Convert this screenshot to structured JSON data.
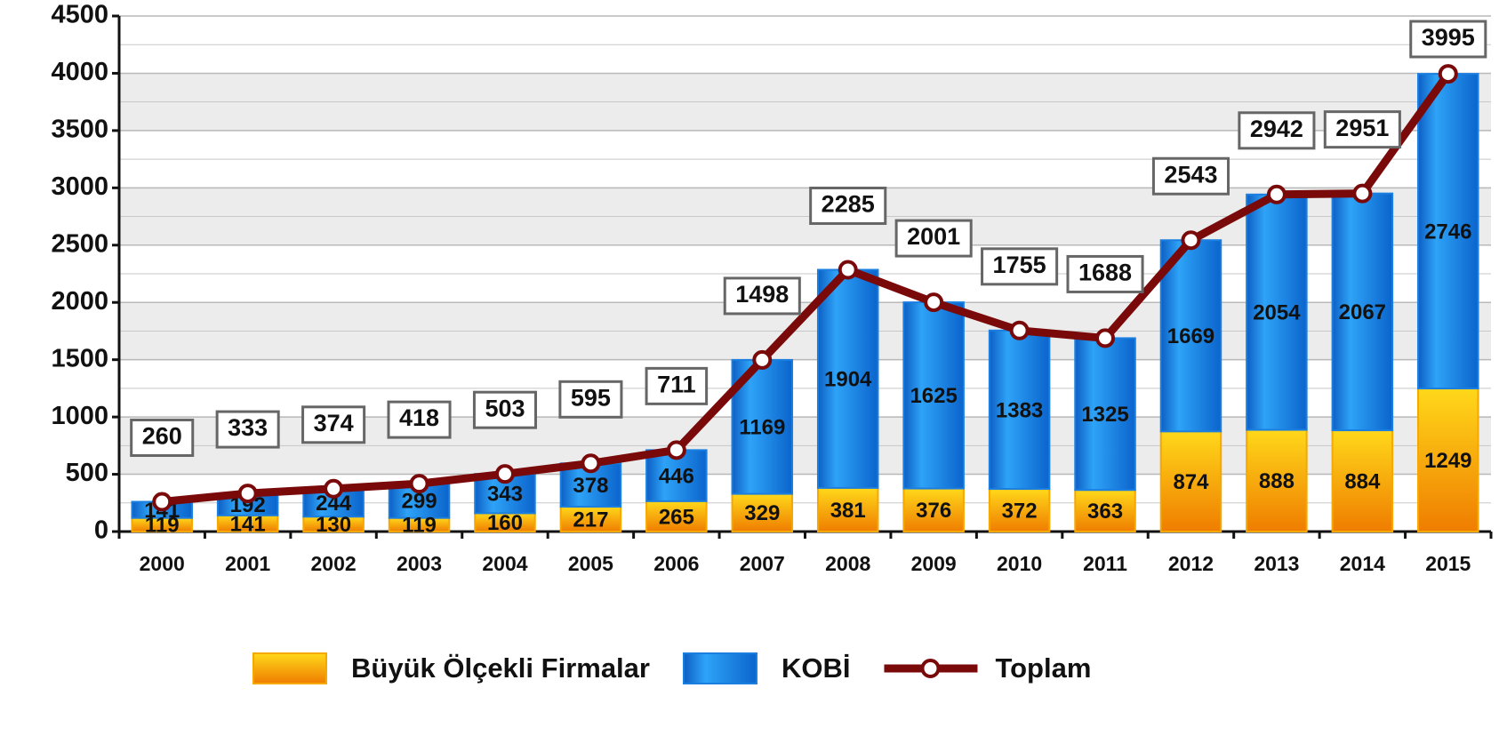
{
  "chart_data": {
    "type": "bar",
    "stacked": true,
    "categories": [
      "2000",
      "2001",
      "2002",
      "2003",
      "2004",
      "2005",
      "2006",
      "2007",
      "2008",
      "2009",
      "2010",
      "2011",
      "2012",
      "2013",
      "2014",
      "2015"
    ],
    "series": [
      {
        "name": "Büyük Ölçekli Firmalar",
        "type": "bar",
        "color": "#f5a800",
        "values": [
          119,
          141,
          130,
          119,
          160,
          217,
          265,
          329,
          381,
          376,
          372,
          363,
          874,
          888,
          884,
          1249
        ]
      },
      {
        "name": "KOBİ",
        "type": "bar",
        "color": "#1a7fe0",
        "values": [
          141,
          192,
          244,
          299,
          343,
          378,
          446,
          1169,
          1904,
          1625,
          1383,
          1325,
          1669,
          2054,
          2067,
          2746
        ]
      },
      {
        "name": "Toplam",
        "type": "line",
        "color": "#7a0a0a",
        "values": [
          260,
          333,
          374,
          418,
          503,
          595,
          711,
          1498,
          2285,
          2001,
          1755,
          1688,
          2543,
          2942,
          2951,
          3995
        ]
      }
    ],
    "ylim": [
      0,
      4500
    ],
    "yticks": [
      0,
      500,
      1000,
      1500,
      2000,
      2500,
      3000,
      3500,
      4000,
      4500
    ],
    "grid": true,
    "legend": "bottom"
  }
}
